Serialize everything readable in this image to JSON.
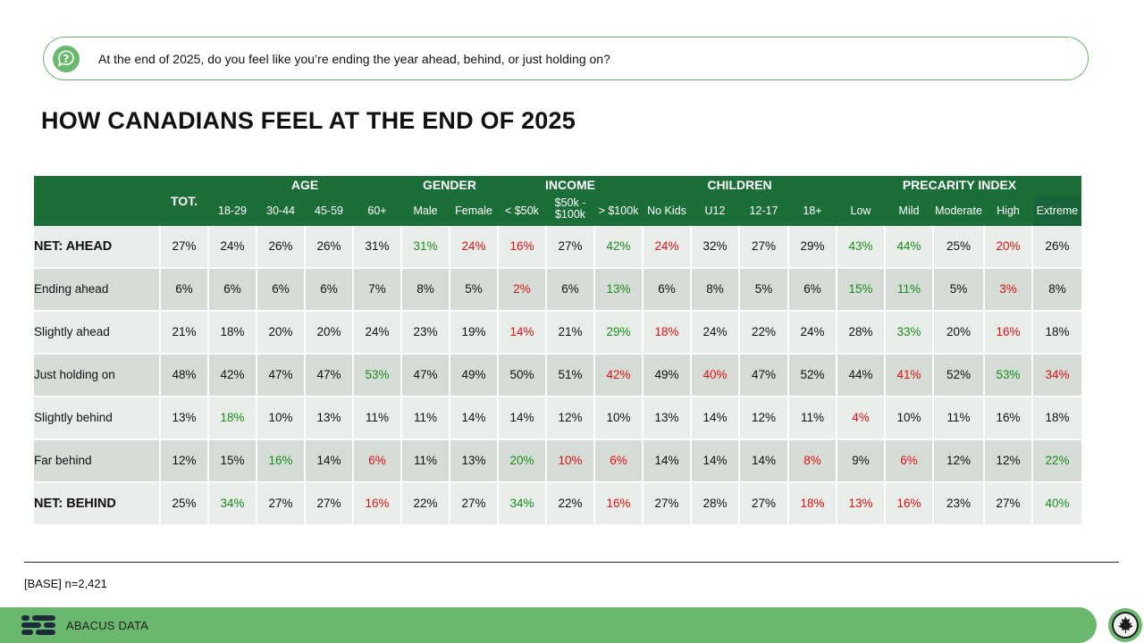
{
  "question": "At the end of 2025, do you feel like you’re ending the year ahead, behind, or just holding on?",
  "title": "HOW CANADIANS FEEL AT THE END OF 2025",
  "table": {
    "tot_label": "TOT.",
    "groups": [
      {
        "label": "AGE",
        "subs": [
          "18-29",
          "30-44",
          "45-59",
          "60+"
        ]
      },
      {
        "label": "GENDER",
        "subs": [
          "Male",
          "Female"
        ]
      },
      {
        "label": "INCOME",
        "subs": [
          "< $50k",
          "$50k - $100k",
          "> $100k"
        ]
      },
      {
        "label": "CHILDREN",
        "subs": [
          "No Kids",
          "U12",
          "12-17",
          "18+"
        ]
      },
      {
        "label": "PRECARITY INDEX",
        "subs": [
          "Low",
          "Mild",
          "Moderate",
          "High",
          "Extreme"
        ]
      }
    ],
    "rows": [
      {
        "label": "NET: AHEAD",
        "bold": true,
        "values": [
          "27%",
          "24%",
          "26%",
          "26%",
          "31%",
          "31%",
          "24%",
          "16%",
          "27%",
          "42%",
          "24%",
          "32%",
          "27%",
          "29%",
          "43%",
          "44%",
          "25%",
          "20%",
          "26%"
        ],
        "colors": [
          "",
          "",
          "",
          "",
          "",
          "g",
          "r",
          "r",
          "",
          "g",
          "r",
          "",
          "",
          "",
          "g",
          "g",
          "",
          "r",
          ""
        ]
      },
      {
        "label": "Ending ahead",
        "bold": false,
        "values": [
          "6%",
          "6%",
          "6%",
          "6%",
          "7%",
          "8%",
          "5%",
          "2%",
          "6%",
          "13%",
          "6%",
          "8%",
          "5%",
          "6%",
          "15%",
          "11%",
          "5%",
          "3%",
          "8%"
        ],
        "colors": [
          "",
          "",
          "",
          "",
          "",
          "",
          "",
          "r",
          "",
          "g",
          "",
          "",
          "",
          "",
          "g",
          "g",
          "",
          "r",
          ""
        ]
      },
      {
        "label": "Slightly ahead",
        "bold": false,
        "values": [
          "21%",
          "18%",
          "20%",
          "20%",
          "24%",
          "23%",
          "19%",
          "14%",
          "21%",
          "29%",
          "18%",
          "24%",
          "22%",
          "24%",
          "28%",
          "33%",
          "20%",
          "16%",
          "18%"
        ],
        "colors": [
          "",
          "",
          "",
          "",
          "",
          "",
          "",
          "r",
          "",
          "g",
          "r",
          "",
          "",
          "",
          "",
          "g",
          "",
          "r",
          ""
        ]
      },
      {
        "label": "Just holding on",
        "bold": false,
        "values": [
          "48%",
          "42%",
          "47%",
          "47%",
          "53%",
          "47%",
          "49%",
          "50%",
          "51%",
          "42%",
          "49%",
          "40%",
          "47%",
          "52%",
          "44%",
          "41%",
          "52%",
          "53%",
          "34%"
        ],
        "colors": [
          "",
          "",
          "",
          "",
          "g",
          "",
          "",
          "",
          "",
          "r",
          "",
          "r",
          "",
          "",
          "",
          "r",
          "",
          "g",
          "r"
        ]
      },
      {
        "label": "Slightly behind",
        "bold": false,
        "values": [
          "13%",
          "18%",
          "10%",
          "13%",
          "11%",
          "11%",
          "14%",
          "14%",
          "12%",
          "10%",
          "13%",
          "14%",
          "12%",
          "11%",
          "4%",
          "10%",
          "11%",
          "16%",
          "18%"
        ],
        "colors": [
          "",
          "g",
          "",
          "",
          "",
          "",
          "",
          "",
          "",
          "",
          "",
          "",
          "",
          "",
          "r",
          "",
          "",
          "",
          ""
        ]
      },
      {
        "label": "Far behind",
        "bold": false,
        "values": [
          "12%",
          "15%",
          "16%",
          "14%",
          "6%",
          "11%",
          "13%",
          "20%",
          "10%",
          "6%",
          "14%",
          "14%",
          "14%",
          "8%",
          "9%",
          "6%",
          "12%",
          "12%",
          "22%"
        ],
        "colors": [
          "",
          "",
          "g",
          "",
          "r",
          "",
          "",
          "g",
          "r",
          "r",
          "",
          "",
          "",
          "r",
          "",
          "r",
          "",
          "",
          "g"
        ]
      },
      {
        "label": "NET: BEHIND",
        "bold": true,
        "values": [
          "25%",
          "34%",
          "27%",
          "27%",
          "16%",
          "22%",
          "27%",
          "34%",
          "22%",
          "16%",
          "27%",
          "28%",
          "27%",
          "18%",
          "13%",
          "16%",
          "23%",
          "27%",
          "40%"
        ],
        "colors": [
          "",
          "g",
          "",
          "",
          "r",
          "",
          "",
          "g",
          "",
          "r",
          "",
          "",
          "",
          "r",
          "r",
          "r",
          "",
          "",
          "g"
        ]
      }
    ]
  },
  "base_note": "[BASE] n=2,421",
  "footer": {
    "brand": "ABACUS DATA"
  },
  "colors": {
    "header_green": "#1c6e39",
    "footer_green": "#6ab86d",
    "positive": "#1a8c1a",
    "negative": "#e01010"
  }
}
